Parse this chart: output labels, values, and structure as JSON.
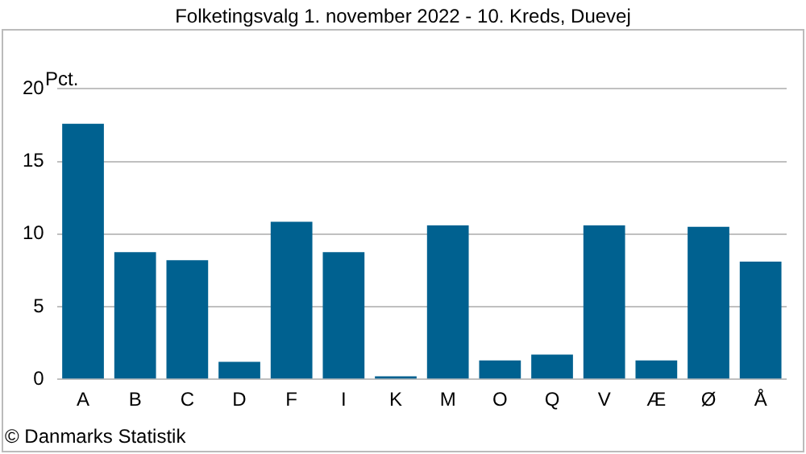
{
  "chart_data": {
    "type": "bar",
    "title": "Folketingsvalg 1. november 2022 - 10. Kreds, Duevej",
    "ylabel": "Pct.",
    "categories": [
      "A",
      "B",
      "C",
      "D",
      "F",
      "I",
      "K",
      "M",
      "O",
      "Q",
      "V",
      "Æ",
      "Ø",
      "Å"
    ],
    "values": [
      17.6,
      8.75,
      8.2,
      1.2,
      10.85,
      8.75,
      0.2,
      10.6,
      1.3,
      1.7,
      10.6,
      1.3,
      10.5,
      8.1
    ],
    "color": "#006190",
    "ylim": [
      0,
      20
    ],
    "yticks": [
      0,
      5,
      10,
      15,
      20
    ],
    "grid": "y",
    "legend": false,
    "annotations": [
      "© Danmarks Statistik"
    ]
  }
}
